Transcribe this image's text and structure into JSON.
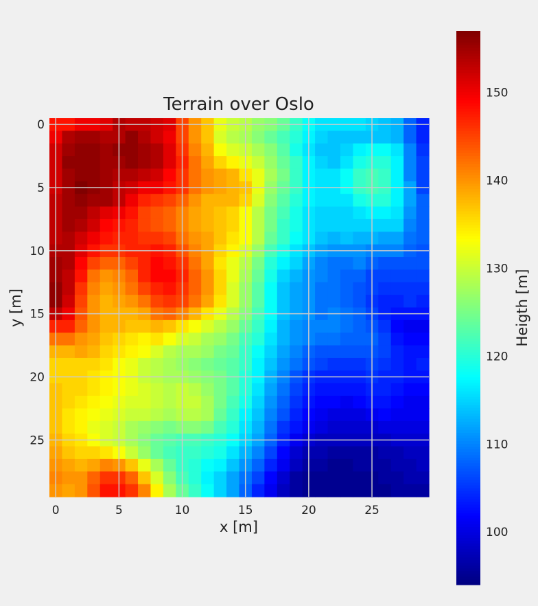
{
  "chart_data": {
    "type": "heatmap",
    "title": "Terrain over Oslo",
    "xlabel": "x [m]",
    "ylabel": "y [m]",
    "colorbar_label": "Heigth [m]",
    "colormap": "jet",
    "grid": true,
    "x_ticks": [
      "0",
      "5",
      "10",
      "15",
      "20",
      "25"
    ],
    "y_ticks": [
      "0",
      "5",
      "10",
      "15",
      "20",
      "25"
    ],
    "colorbar_ticks": [
      "100",
      "110",
      "120",
      "130",
      "140",
      "150"
    ],
    "vmin": 94,
    "vmax": 157,
    "rows": 30,
    "cols": 30,
    "values": [
      [
        148,
        148,
        150,
        150,
        151,
        154,
        153,
        153,
        152,
        151,
        145,
        140,
        137,
        132,
        130,
        129,
        127,
        126,
        124,
        121,
        118,
        116,
        116,
        116,
        116,
        115,
        114,
        113,
        108,
        104
      ],
      [
        150,
        154,
        155,
        155,
        154,
        154,
        156,
        154,
        152,
        150,
        145,
        140,
        137,
        131,
        129,
        128,
        126,
        124,
        122,
        120,
        117,
        115,
        114,
        114,
        114,
        114,
        114,
        113,
        108,
        104
      ],
      [
        152,
        155,
        156,
        156,
        155,
        156,
        156,
        155,
        154,
        151,
        146,
        141,
        138,
        133,
        131,
        130,
        128,
        126,
        123,
        119,
        116,
        114,
        114,
        115,
        117,
        118,
        118,
        116,
        110,
        105
      ],
      [
        152,
        156,
        156,
        156,
        155,
        155,
        156,
        155,
        154,
        151,
        147,
        142,
        139,
        136,
        134,
        132,
        130,
        127,
        124,
        121,
        117,
        115,
        114,
        116,
        119,
        120,
        120,
        117,
        110,
        106
      ],
      [
        152,
        155,
        156,
        156,
        155,
        154,
        154,
        153,
        152,
        149,
        146,
        142,
        140,
        139,
        138,
        135,
        132,
        128,
        125,
        121,
        117,
        116,
        116,
        118,
        121,
        122,
        121,
        117,
        110,
        106
      ],
      [
        152,
        155,
        157,
        156,
        155,
        153,
        152,
        150,
        150,
        148,
        146,
        142,
        140,
        139,
        138,
        137,
        132,
        127,
        124,
        121,
        117,
        116,
        116,
        118,
        121,
        122,
        121,
        117,
        112,
        106
      ],
      [
        153,
        155,
        156,
        155,
        155,
        153,
        150,
        147,
        146,
        145,
        143,
        140,
        138,
        138,
        138,
        136,
        131,
        126,
        123,
        120,
        117,
        116,
        116,
        116,
        119,
        120,
        120,
        117,
        112,
        108
      ],
      [
        153,
        155,
        155,
        153,
        151,
        150,
        148,
        145,
        144,
        143,
        141,
        139,
        138,
        137,
        136,
        133,
        129,
        125,
        122,
        119,
        116,
        115,
        115,
        115,
        116,
        117,
        117,
        116,
        111,
        108
      ],
      [
        153,
        155,
        154,
        152,
        149,
        148,
        147,
        145,
        144,
        143,
        141,
        139,
        138,
        137,
        136,
        133,
        129,
        125,
        121,
        119,
        116,
        115,
        115,
        115,
        115,
        115,
        115,
        115,
        110,
        108
      ],
      [
        153,
        154,
        152,
        150,
        148,
        147,
        147,
        146,
        146,
        145,
        142,
        140,
        139,
        137,
        135,
        133,
        129,
        124,
        121,
        118,
        116,
        114,
        113,
        114,
        113,
        113,
        112,
        112,
        109,
        108
      ],
      [
        154,
        154,
        151,
        148,
        146,
        146,
        147,
        147,
        148,
        147,
        144,
        141,
        139,
        136,
        134,
        131,
        127,
        122,
        119,
        116,
        114,
        112,
        111,
        111,
        111,
        110,
        110,
        110,
        108,
        107
      ],
      [
        155,
        154,
        149,
        145,
        143,
        143,
        145,
        147,
        149,
        148,
        146,
        142,
        139,
        135,
        132,
        129,
        125,
        120,
        117,
        115,
        112,
        110,
        109,
        109,
        110,
        108,
        107,
        107,
        107,
        107
      ],
      [
        155,
        153,
        148,
        142,
        140,
        141,
        143,
        147,
        149,
        149,
        147,
        143,
        140,
        136,
        132,
        128,
        124,
        119,
        115,
        113,
        111,
        110,
        109,
        108,
        108,
        106,
        106,
        106,
        106,
        106
      ],
      [
        156,
        153,
        146,
        141,
        139,
        140,
        142,
        145,
        147,
        148,
        146,
        143,
        140,
        136,
        131,
        127,
        123,
        118,
        114,
        112,
        111,
        109,
        109,
        108,
        107,
        106,
        105,
        105,
        105,
        105
      ],
      [
        156,
        152,
        145,
        140,
        138,
        139,
        140,
        142,
        145,
        146,
        145,
        142,
        139,
        135,
        131,
        127,
        123,
        118,
        114,
        112,
        111,
        109,
        109,
        108,
        107,
        105,
        104,
        104,
        105,
        104
      ],
      [
        153,
        150,
        144,
        140,
        138,
        138,
        138,
        139,
        142,
        143,
        141,
        138,
        135,
        132,
        129,
        126,
        122,
        118,
        114,
        112,
        111,
        109,
        110,
        109,
        108,
        106,
        104,
        103,
        103,
        103
      ],
      [
        147,
        147,
        143,
        140,
        138,
        138,
        137,
        137,
        138,
        137,
        135,
        133,
        131,
        129,
        127,
        124,
        121,
        117,
        113,
        111,
        110,
        110,
        110,
        109,
        108,
        107,
        105,
        102,
        101,
        101
      ],
      [
        142,
        142,
        140,
        139,
        137,
        136,
        135,
        134,
        135,
        133,
        131,
        130,
        128,
        127,
        125,
        122,
        120,
        116,
        113,
        111,
        110,
        109,
        109,
        108,
        108,
        108,
        106,
        103,
        102,
        102
      ],
      [
        138,
        138,
        139,
        138,
        136,
        135,
        134,
        133,
        131,
        129,
        128,
        128,
        127,
        125,
        124,
        121,
        118,
        115,
        112,
        110,
        108,
        107,
        107,
        107,
        107,
        107,
        106,
        104,
        103,
        103
      ],
      [
        136,
        136,
        136,
        136,
        135,
        133,
        132,
        130,
        129,
        128,
        127,
        126,
        125,
        124,
        123,
        121,
        117,
        114,
        111,
        109,
        107,
        106,
        105,
        105,
        105,
        106,
        105,
        104,
        103,
        104
      ],
      [
        136,
        136,
        136,
        135,
        134,
        133,
        132,
        130,
        129,
        128,
        128,
        127,
        126,
        125,
        123,
        120,
        117,
        113,
        110,
        107,
        105,
        104,
        104,
        104,
        104,
        105,
        104,
        104,
        103,
        103
      ],
      [
        137,
        136,
        136,
        135,
        134,
        133,
        132,
        131,
        130,
        129,
        130,
        129,
        127,
        125,
        123,
        120,
        116,
        112,
        109,
        106,
        104,
        103,
        103,
        103,
        103,
        104,
        104,
        103,
        102,
        102
      ],
      [
        137,
        136,
        135,
        134,
        133,
        132,
        131,
        131,
        130,
        129,
        130,
        130,
        128,
        125,
        122,
        119,
        115,
        111,
        108,
        105,
        103,
        102,
        102,
        101,
        102,
        103,
        103,
        102,
        101,
        101
      ],
      [
        137,
        135,
        134,
        133,
        132,
        131,
        130,
        130,
        129,
        128,
        129,
        129,
        128,
        124,
        121,
        117,
        114,
        110,
        107,
        104,
        102,
        101,
        100,
        100,
        100,
        101,
        102,
        101,
        101,
        101
      ],
      [
        137,
        135,
        134,
        132,
        131,
        130,
        128,
        127,
        126,
        125,
        126,
        126,
        125,
        122,
        120,
        116,
        113,
        109,
        105,
        103,
        101,
        100,
        99,
        99,
        99,
        99,
        100,
        100,
        100,
        100
      ],
      [
        138,
        136,
        135,
        133,
        131,
        130,
        128,
        126,
        124,
        123,
        122,
        122,
        121,
        120,
        118,
        115,
        112,
        108,
        104,
        101,
        99,
        98,
        98,
        98,
        98,
        98,
        98,
        99,
        99,
        99
      ],
      [
        139,
        137,
        136,
        136,
        135,
        133,
        130,
        127,
        124,
        122,
        121,
        121,
        120,
        119,
        116,
        113,
        110,
        106,
        102,
        99,
        97,
        97,
        96,
        96,
        96,
        96,
        97,
        97,
        98,
        98
      ],
      [
        140,
        139,
        138,
        139,
        141,
        140,
        137,
        132,
        128,
        124,
        121,
        120,
        118,
        117,
        114,
        111,
        108,
        104,
        101,
        98,
        96,
        96,
        95,
        95,
        96,
        96,
        96,
        97,
        97,
        98
      ],
      [
        141,
        140,
        140,
        143,
        146,
        146,
        143,
        137,
        131,
        126,
        122,
        120,
        117,
        115,
        112,
        109,
        106,
        102,
        99,
        96,
        95,
        95,
        95,
        95,
        95,
        95,
        96,
        96,
        97,
        97
      ],
      [
        140,
        139,
        140,
        144,
        148,
        148,
        146,
        141,
        134,
        128,
        124,
        121,
        118,
        115,
        112,
        108,
        104,
        101,
        98,
        96,
        95,
        95,
        95,
        95,
        95,
        95,
        95,
        96,
        96,
        96
      ]
    ]
  }
}
